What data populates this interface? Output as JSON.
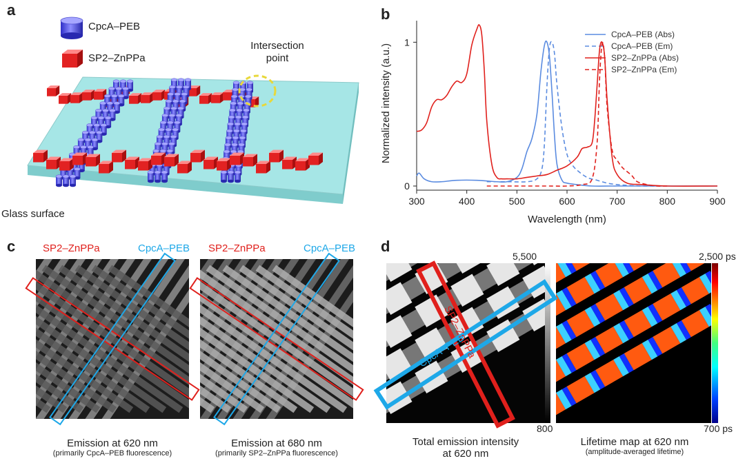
{
  "panels": {
    "a": {
      "label": "a",
      "legend": [
        "CpcA–PEB",
        "SP2–ZnPPa"
      ],
      "callout": [
        "Intersection",
        "point"
      ],
      "surface_label": "Glass surface"
    },
    "b": {
      "label": "b"
    },
    "c": {
      "label": "c",
      "left": {
        "tag_red": "SP2–ZnPPa",
        "tag_blue": "CpcA–PEB",
        "caption": "Emission at 620 nm",
        "subcaption": "(primarily CpcA–PEB fluorescence)"
      },
      "right": {
        "tag_red": "SP2–ZnPPa",
        "tag_blue": "CpcA–PEB",
        "caption": "Emission at 680 nm",
        "subcaption": "(primarily SP2–ZnPPa fluorescence)"
      }
    },
    "d": {
      "label": "d",
      "left": {
        "scale_max": "5,500",
        "scale_min": "800",
        "box_red": "SP2–ZnPPa",
        "box_blue": "CpcA–PEB",
        "caption": [
          "Total emission intensity",
          "at 620 nm"
        ]
      },
      "right": {
        "scale_max": "2,500 ps",
        "scale_min": "700 ps",
        "caption": "Lifetime map at 620 nm",
        "subcaption": "(amplitude-averaged lifetime)"
      }
    }
  },
  "colors": {
    "blue": "#5a8be0",
    "red": "#e0201c",
    "cyan_box": "#1ea8e8",
    "glass": "#a6e6e6"
  },
  "chart_data": {
    "type": "line",
    "xlabel": "Wavelength (nm)",
    "ylabel": "Normalized intensity (a.u.)",
    "xlim": [
      300,
      900
    ],
    "ylim": [
      0,
      1.15
    ],
    "xticks": [
      300,
      400,
      500,
      600,
      700,
      800,
      900
    ],
    "yticks": [
      0,
      1
    ],
    "legend_position": "top-right",
    "series": [
      {
        "name": "CpcA–PEB (Abs)",
        "color": "#5a8be0",
        "dash": false,
        "x": [
          300,
          305,
          315,
          330,
          350,
          380,
          420,
          460,
          480,
          500,
          510,
          520,
          530,
          540,
          548,
          555,
          560,
          565,
          570,
          575,
          580,
          590,
          600,
          620,
          650,
          700,
          800,
          900
        ],
        "y": [
          0.07,
          0.09,
          0.05,
          0.03,
          0.03,
          0.04,
          0.04,
          0.03,
          0.03,
          0.06,
          0.12,
          0.24,
          0.33,
          0.5,
          0.8,
          0.98,
          1.0,
          0.9,
          0.65,
          0.35,
          0.15,
          0.04,
          0.02,
          0.01,
          0.0,
          0.0,
          0.0,
          0.0
        ]
      },
      {
        "name": "CpcA–PEB (Em)",
        "color": "#5a8be0",
        "dash": true,
        "x": [
          440,
          480,
          520,
          540,
          550,
          555,
          560,
          565,
          570,
          575,
          580,
          590,
          600,
          610,
          620,
          640,
          660,
          680,
          700,
          720,
          750,
          800
        ],
        "y": [
          0.03,
          0.03,
          0.03,
          0.05,
          0.12,
          0.3,
          0.7,
          0.96,
          1.0,
          0.92,
          0.7,
          0.4,
          0.22,
          0.15,
          0.11,
          0.06,
          0.04,
          0.02,
          0.01,
          0.005,
          0.0,
          0.0
        ]
      },
      {
        "name": "SP2–ZnPPa (Abs)",
        "color": "#e0201c",
        "dash": false,
        "x": [
          300,
          310,
          320,
          330,
          340,
          350,
          360,
          370,
          380,
          390,
          400,
          410,
          420,
          425,
          430,
          435,
          440,
          450,
          460,
          470,
          480,
          500,
          520,
          540,
          560,
          580,
          600,
          620,
          630,
          640,
          650,
          655,
          660,
          665,
          670,
          675,
          680,
          690,
          700,
          720,
          750,
          800,
          900
        ],
        "y": [
          0.38,
          0.39,
          0.44,
          0.55,
          0.6,
          0.6,
          0.63,
          0.69,
          0.73,
          0.72,
          0.78,
          0.98,
          1.09,
          1.12,
          1.05,
          0.8,
          0.45,
          0.15,
          0.06,
          0.05,
          0.05,
          0.05,
          0.06,
          0.07,
          0.08,
          0.11,
          0.14,
          0.2,
          0.26,
          0.27,
          0.3,
          0.45,
          0.7,
          0.95,
          1.0,
          0.9,
          0.6,
          0.2,
          0.08,
          0.02,
          0.01,
          0.0,
          0.0
        ]
      },
      {
        "name": "SP2–ZnPPa (Em)",
        "color": "#e0201c",
        "dash": true,
        "x": [
          440,
          500,
          560,
          600,
          630,
          650,
          660,
          665,
          670,
          675,
          680,
          690,
          700,
          710,
          720,
          730,
          740,
          760,
          780,
          800
        ],
        "y": [
          0.0,
          0.0,
          0.0,
          0.0,
          0.01,
          0.05,
          0.3,
          0.75,
          0.99,
          0.9,
          0.55,
          0.25,
          0.18,
          0.13,
          0.1,
          0.07,
          0.03,
          0.01,
          0.0,
          0.0
        ]
      }
    ]
  }
}
